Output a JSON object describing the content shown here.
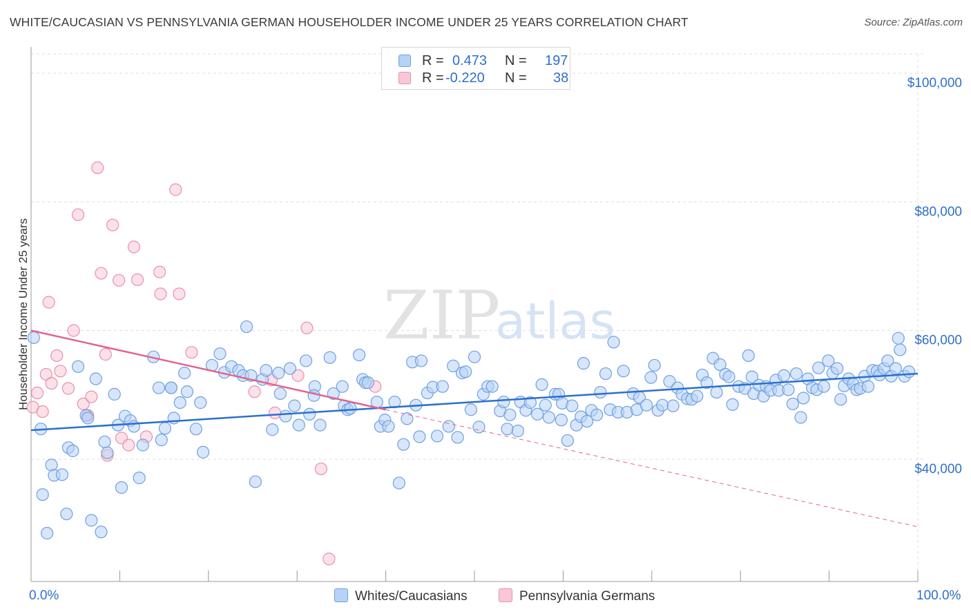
{
  "title": "WHITE/CAUCASIAN VS PENNSYLVANIA GERMAN HOUSEHOLDER INCOME UNDER 25 YEARS CORRELATION CHART",
  "source": "Source: ZipAtlas.com",
  "watermark": {
    "part1": "ZIP",
    "part2": "atlas"
  },
  "legend": {
    "rows": [
      {
        "r_label": "R =",
        "r_value": "0.473",
        "n_label": "N =",
        "n_value": "197"
      },
      {
        "r_label": "R =",
        "r_value": "-0.220",
        "n_label": "N =",
        "n_value": "38"
      }
    ]
  },
  "bottom_legend": {
    "series1": "Whites/Caucasians",
    "series2": "Pennsylvania Germans"
  },
  "x_tick_left": "0.0%",
  "x_tick_right": "100.0%",
  "colors": {
    "blue_fill": "#b7d2f7",
    "blue_stroke": "#6f9fe0",
    "blue_line": "#2a6fd0",
    "pink_fill": "#f8c8d6",
    "pink_stroke": "#ea8fab",
    "pink_line": "#e0648f",
    "tick_text": "#2f6fc9"
  },
  "chart_data": {
    "type": "scatter",
    "xlabel": "",
    "ylabel": "Householder Income Under 25 years",
    "xlim": [
      0,
      100
    ],
    "ylim": [
      21000,
      103000
    ],
    "y_ticks": [
      {
        "value": 40000,
        "label": "$40,000"
      },
      {
        "value": 60000,
        "label": "$60,000"
      },
      {
        "value": 80000,
        "label": "$80,000"
      },
      {
        "value": 100000,
        "label": "$100,000"
      }
    ],
    "grid": true,
    "legend_position": "top-center",
    "series": [
      {
        "name": "Whites/Caucasians",
        "trend": {
          "x": [
            0,
            100
          ],
          "y": [
            44500,
            53300
          ]
        },
        "points": [
          [
            0.3,
            58900
          ],
          [
            1.1,
            44700
          ],
          [
            1.3,
            34500
          ],
          [
            1.8,
            28500
          ],
          [
            2.3,
            39100
          ],
          [
            2.6,
            37500
          ],
          [
            3.5,
            37600
          ],
          [
            4.0,
            31500
          ],
          [
            4.2,
            41800
          ],
          [
            4.7,
            41300
          ],
          [
            5.3,
            54400
          ],
          [
            6.2,
            46800
          ],
          [
            6.4,
            46400
          ],
          [
            6.8,
            30500
          ],
          [
            7.3,
            52500
          ],
          [
            7.9,
            28700
          ],
          [
            8.3,
            42700
          ],
          [
            8.6,
            41000
          ],
          [
            9.4,
            50100
          ],
          [
            9.8,
            45300
          ],
          [
            10.2,
            35600
          ],
          [
            10.6,
            46700
          ],
          [
            11.2,
            46000
          ],
          [
            11.6,
            45100
          ],
          [
            12.2,
            37100
          ],
          [
            12.6,
            42200
          ],
          [
            13.8,
            55900
          ],
          [
            14.4,
            51100
          ],
          [
            14.7,
            43000
          ],
          [
            15.1,
            44800
          ],
          [
            15.8,
            51100
          ],
          [
            16.1,
            46400
          ],
          [
            16.8,
            48800
          ],
          [
            17.3,
            53400
          ],
          [
            17.6,
            50500
          ],
          [
            18.6,
            44700
          ],
          [
            19.1,
            48800
          ],
          [
            19.4,
            41100
          ],
          [
            20.4,
            54600
          ],
          [
            21.3,
            56400
          ],
          [
            21.8,
            53500
          ],
          [
            22.6,
            54400
          ],
          [
            23.4,
            53800
          ],
          [
            23.9,
            53000
          ],
          [
            24.3,
            60600
          ],
          [
            24.8,
            53000
          ],
          [
            25.3,
            36500
          ],
          [
            26.1,
            52400
          ],
          [
            26.5,
            53800
          ],
          [
            27.2,
            44600
          ],
          [
            27.9,
            53400
          ],
          [
            28.1,
            50200
          ],
          [
            28.7,
            46700
          ],
          [
            29.2,
            54100
          ],
          [
            29.7,
            48300
          ],
          [
            30.2,
            45300
          ],
          [
            31.0,
            55300
          ],
          [
            31.4,
            47000
          ],
          [
            32.0,
            51300
          ],
          [
            31.9,
            49900
          ],
          [
            32.6,
            45300
          ],
          [
            33.7,
            55800
          ],
          [
            34.1,
            50200
          ],
          [
            35.1,
            51300
          ],
          [
            35.3,
            48300
          ],
          [
            35.7,
            47700
          ],
          [
            36.0,
            47900
          ],
          [
            37.0,
            56200
          ],
          [
            37.4,
            52400
          ],
          [
            37.7,
            51900
          ],
          [
            38.0,
            51900
          ],
          [
            39.0,
            48900
          ],
          [
            39.4,
            45100
          ],
          [
            39.9,
            46100
          ],
          [
            40.3,
            45100
          ],
          [
            41.0,
            48900
          ],
          [
            41.5,
            36300
          ],
          [
            42.0,
            42300
          ],
          [
            42.4,
            46300
          ],
          [
            43.0,
            55100
          ],
          [
            43.4,
            48400
          ],
          [
            43.8,
            43500
          ],
          [
            44.0,
            55300
          ],
          [
            44.7,
            50300
          ],
          [
            45.3,
            51200
          ],
          [
            45.8,
            43600
          ],
          [
            46.4,
            51300
          ],
          [
            47.1,
            45100
          ],
          [
            47.6,
            54500
          ],
          [
            48.1,
            43400
          ],
          [
            48.6,
            53400
          ],
          [
            49.0,
            53600
          ],
          [
            49.6,
            47700
          ],
          [
            50.0,
            55900
          ],
          [
            50.5,
            45000
          ],
          [
            51.0,
            50100
          ],
          [
            51.5,
            51300
          ],
          [
            52.0,
            51300
          ],
          [
            52.9,
            47500
          ],
          [
            53.3,
            48900
          ],
          [
            53.7,
            44700
          ],
          [
            54.0,
            46900
          ],
          [
            54.9,
            44400
          ],
          [
            55.2,
            48900
          ],
          [
            55.8,
            47600
          ],
          [
            56.3,
            48800
          ],
          [
            57.1,
            47000
          ],
          [
            57.6,
            51600
          ],
          [
            58.0,
            48400
          ],
          [
            58.4,
            46500
          ],
          [
            59.1,
            50100
          ],
          [
            59.5,
            50100
          ],
          [
            59.9,
            48700
          ],
          [
            59.8,
            46100
          ],
          [
            60.5,
            42900
          ],
          [
            61.0,
            48300
          ],
          [
            61.5,
            45300
          ],
          [
            62.0,
            46600
          ],
          [
            62.3,
            54900
          ],
          [
            62.7,
            45900
          ],
          [
            63.2,
            47600
          ],
          [
            63.8,
            46900
          ],
          [
            64.2,
            50400
          ],
          [
            64.8,
            53300
          ],
          [
            65.3,
            47700
          ],
          [
            65.7,
            58200
          ],
          [
            66.2,
            47300
          ],
          [
            66.8,
            53700
          ],
          [
            67.2,
            47300
          ],
          [
            67.9,
            50200
          ],
          [
            68.3,
            47700
          ],
          [
            68.6,
            49600
          ],
          [
            69.4,
            48400
          ],
          [
            69.9,
            52700
          ],
          [
            70.3,
            54600
          ],
          [
            70.7,
            47600
          ],
          [
            71.2,
            48400
          ],
          [
            72.0,
            52100
          ],
          [
            72.4,
            48300
          ],
          [
            72.9,
            51100
          ],
          [
            73.4,
            50100
          ],
          [
            74.0,
            49400
          ],
          [
            74.5,
            49300
          ],
          [
            75.1,
            49800
          ],
          [
            75.7,
            53100
          ],
          [
            76.2,
            51900
          ],
          [
            76.9,
            55700
          ],
          [
            77.3,
            50400
          ],
          [
            77.7,
            54700
          ],
          [
            78.3,
            53200
          ],
          [
            78.7,
            52800
          ],
          [
            79.1,
            48500
          ],
          [
            79.8,
            51300
          ],
          [
            80.5,
            51000
          ],
          [
            80.9,
            56100
          ],
          [
            81.3,
            52800
          ],
          [
            81.5,
            50200
          ],
          [
            82.1,
            51500
          ],
          [
            82.6,
            49800
          ],
          [
            82.9,
            51300
          ],
          [
            83.4,
            50700
          ],
          [
            84.0,
            52300
          ],
          [
            84.3,
            50700
          ],
          [
            84.9,
            53000
          ],
          [
            85.4,
            50800
          ],
          [
            85.9,
            48600
          ],
          [
            86.3,
            53300
          ],
          [
            86.8,
            46500
          ],
          [
            87.1,
            49500
          ],
          [
            87.6,
            52500
          ],
          [
            88.1,
            51100
          ],
          [
            88.6,
            50800
          ],
          [
            88.8,
            54200
          ],
          [
            89.4,
            51300
          ],
          [
            89.9,
            55300
          ],
          [
            90.4,
            53400
          ],
          [
            90.9,
            54100
          ],
          [
            91.3,
            49300
          ],
          [
            91.7,
            51400
          ],
          [
            92.2,
            52500
          ],
          [
            92.7,
            51700
          ],
          [
            93.1,
            50800
          ],
          [
            93.5,
            51000
          ],
          [
            94.0,
            52900
          ],
          [
            94.4,
            51300
          ],
          [
            94.9,
            53800
          ],
          [
            95.4,
            53700
          ],
          [
            95.7,
            53100
          ],
          [
            96.2,
            54100
          ],
          [
            96.6,
            55300
          ],
          [
            97.0,
            52900
          ],
          [
            97.5,
            54100
          ],
          [
            98.0,
            57000
          ],
          [
            98.5,
            52900
          ],
          [
            99.0,
            53600
          ],
          [
            97.8,
            58800
          ],
          [
            15.8,
            51100
          ]
        ]
      },
      {
        "name": "Pennsylvania Germans",
        "trend": {
          "x": [
            0,
            40
          ],
          "y": [
            60000,
            47700
          ]
        },
        "trend_extension": {
          "x": [
            40,
            100
          ],
          "y": [
            47700,
            29500
          ]
        },
        "points": [
          [
            0.2,
            48100
          ],
          [
            0.7,
            50300
          ],
          [
            1.3,
            47400
          ],
          [
            1.7,
            53200
          ],
          [
            2.0,
            64400
          ],
          [
            2.3,
            51800
          ],
          [
            2.9,
            56100
          ],
          [
            3.3,
            53700
          ],
          [
            4.2,
            51000
          ],
          [
            4.8,
            60000
          ],
          [
            5.3,
            78000
          ],
          [
            5.9,
            48600
          ],
          [
            6.4,
            46800
          ],
          [
            6.8,
            49700
          ],
          [
            7.5,
            85300
          ],
          [
            7.9,
            68900
          ],
          [
            8.4,
            56300
          ],
          [
            8.6,
            40600
          ],
          [
            9.2,
            76400
          ],
          [
            9.9,
            67800
          ],
          [
            10.2,
            43300
          ],
          [
            11.0,
            42200
          ],
          [
            11.6,
            73000
          ],
          [
            12.0,
            67900
          ],
          [
            13.0,
            43500
          ],
          [
            14.5,
            69100
          ],
          [
            14.6,
            65700
          ],
          [
            16.3,
            81900
          ],
          [
            16.7,
            65700
          ],
          [
            18.1,
            56600
          ],
          [
            25.2,
            50500
          ],
          [
            27.1,
            52300
          ],
          [
            27.5,
            47200
          ],
          [
            30.1,
            53000
          ],
          [
            31.1,
            60400
          ],
          [
            32.7,
            38500
          ],
          [
            33.6,
            24500
          ],
          [
            38.8,
            51300
          ]
        ]
      }
    ]
  }
}
